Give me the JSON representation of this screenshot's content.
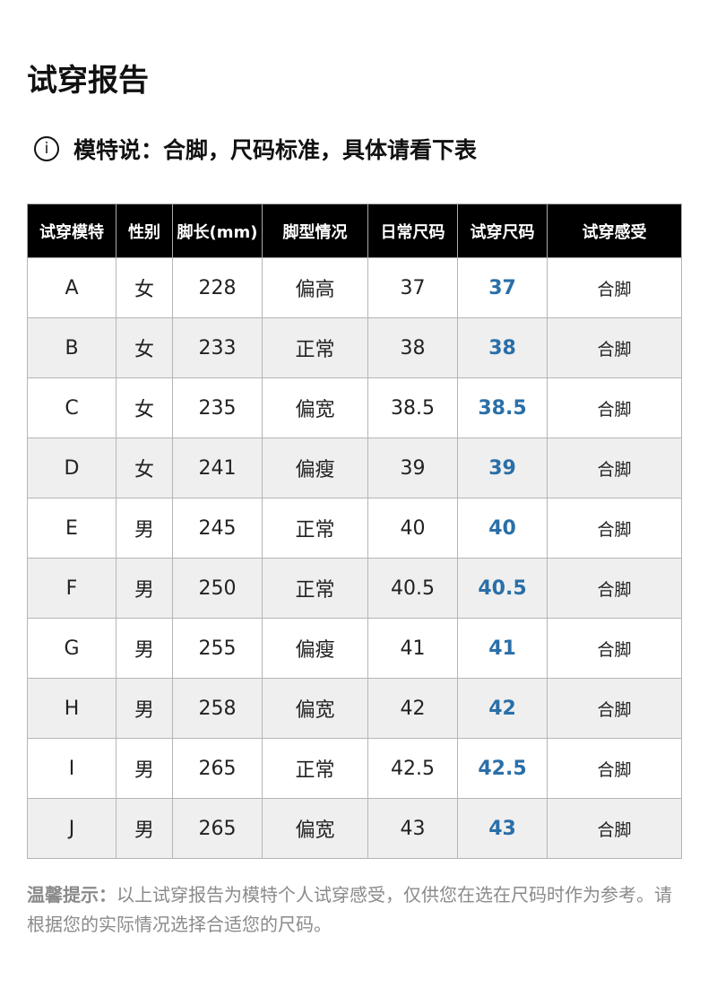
{
  "title": "试穿报告",
  "subtitle": {
    "icon": "info-icon",
    "icon_glyph": "i",
    "text": "模特说：合脚，尺码标准，具体请看下表"
  },
  "table": {
    "headers": [
      "试穿模特",
      "性别",
      "脚长(mm)",
      "脚型情况",
      "日常尺码",
      "试穿尺码",
      "试穿感受"
    ],
    "rows": [
      [
        "A",
        "女",
        "228",
        "偏高",
        "37",
        "37",
        "合脚"
      ],
      [
        "B",
        "女",
        "233",
        "正常",
        "38",
        "38",
        "合脚"
      ],
      [
        "C",
        "女",
        "235",
        "偏宽",
        "38.5",
        "38.5",
        "合脚"
      ],
      [
        "D",
        "女",
        "241",
        "偏瘦",
        "39",
        "39",
        "合脚"
      ],
      [
        "E",
        "男",
        "245",
        "正常",
        "40",
        "40",
        "合脚"
      ],
      [
        "F",
        "男",
        "250",
        "正常",
        "40.5",
        "40.5",
        "合脚"
      ],
      [
        "G",
        "男",
        "255",
        "偏瘦",
        "41",
        "41",
        "合脚"
      ],
      [
        "H",
        "男",
        "258",
        "偏宽",
        "42",
        "42",
        "合脚"
      ],
      [
        "I",
        "男",
        "265",
        "正常",
        "42.5",
        "42.5",
        "合脚"
      ],
      [
        "J",
        "男",
        "265",
        "偏宽",
        "43",
        "43",
        "合脚"
      ]
    ]
  },
  "note": {
    "label": "温馨提示：",
    "text": "以上试穿报告为模特个人试穿感受，仅供您在选在尺码时作为参考。请根据您的实际情况选择合适您的尺码。"
  },
  "colors": {
    "trial_size": "#2a6fa8",
    "header_bg": "#000000",
    "alt_row": "#efefef"
  }
}
